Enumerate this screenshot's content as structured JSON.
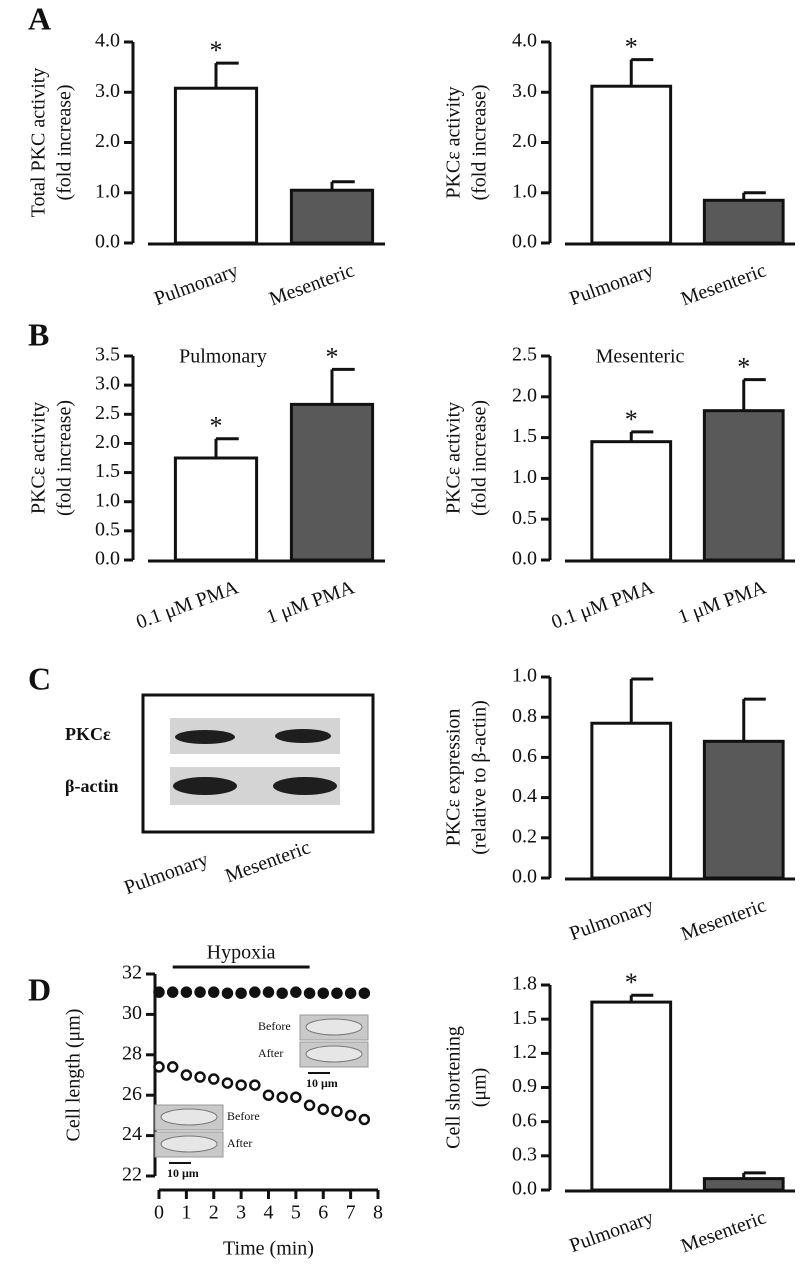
{
  "panel_labels": [
    "A",
    "B",
    "C",
    "D"
  ],
  "blot": {
    "rows": [
      "PKCε",
      "β-actin"
    ],
    "columns": [
      "Pulmonary",
      "Mesenteric"
    ]
  },
  "chart_data": [
    {
      "type": "bar",
      "ylabel": [
        "Total PKC activity",
        "(fold increase)"
      ],
      "categories": [
        "Pulmonary",
        "Mesenteric"
      ],
      "values": [
        3.08,
        1.05
      ],
      "errors": [
        0.5,
        0.17
      ],
      "annotations": [
        "*",
        null
      ],
      "colors": [
        "#ffffff",
        "#595959"
      ],
      "ylim": [
        0,
        4
      ],
      "yticks": [
        {
          "value": 0,
          "label": "0.0"
        },
        {
          "value": 1,
          "label": "1.0"
        },
        {
          "value": 2,
          "label": "2.0"
        },
        {
          "value": 3,
          "label": "3.0"
        },
        {
          "value": 4,
          "label": "4.0"
        }
      ]
    },
    {
      "type": "bar",
      "ylabel": [
        "PKCε activity",
        "(fold increase)"
      ],
      "categories": [
        "Pulmonary",
        "Mesenteric"
      ],
      "values": [
        3.12,
        0.85
      ],
      "errors": [
        0.53,
        0.15
      ],
      "annotations": [
        "*",
        null
      ],
      "colors": [
        "#ffffff",
        "#595959"
      ],
      "ylim": [
        0,
        4
      ],
      "yticks": [
        {
          "value": 0,
          "label": "0.0"
        },
        {
          "value": 1,
          "label": "1.0"
        },
        {
          "value": 2,
          "label": "2.0"
        },
        {
          "value": 3,
          "label": "3.0"
        },
        {
          "value": 4,
          "label": "4.0"
        }
      ]
    },
    {
      "type": "bar",
      "title": "Pulmonary",
      "ylabel": [
        "PKCε activity",
        "(fold increase)"
      ],
      "categories": [
        "0.1 μM PMA",
        "1 μM PMA"
      ],
      "values": [
        1.75,
        2.67
      ],
      "errors": [
        0.33,
        0.6
      ],
      "annotations": [
        "*",
        "*"
      ],
      "colors": [
        "#ffffff",
        "#595959"
      ],
      "ylim": [
        0,
        3.5
      ],
      "yticks": [
        {
          "value": 0,
          "label": "0.0"
        },
        0.5,
        {
          "value": 1,
          "label": "1.0"
        },
        1.5,
        {
          "value": 2,
          "label": "2.0"
        },
        2.5,
        {
          "value": 3,
          "label": "3.0"
        },
        3.5
      ]
    },
    {
      "type": "bar",
      "title": "Mesenteric",
      "ylabel": [
        "PKCε activity",
        "(fold increase)"
      ],
      "categories": [
        "0.1 μM PMA",
        "1 μM PMA"
      ],
      "values": [
        1.45,
        1.83
      ],
      "errors": [
        0.12,
        0.38
      ],
      "annotations": [
        "*",
        "*"
      ],
      "colors": [
        "#ffffff",
        "#595959"
      ],
      "ylim": [
        0,
        2.5
      ],
      "yticks": [
        {
          "value": 0,
          "label": "0.0"
        },
        0.5,
        {
          "value": 1,
          "label": "1.0"
        },
        1.5,
        {
          "value": 2,
          "label": "2.0"
        },
        2.5
      ]
    },
    {
      "type": "bar",
      "ylabel": [
        "PKCε expression",
        "(relative to β-actin)"
      ],
      "categories": [
        "Pulmonary",
        "Mesenteric"
      ],
      "values": [
        0.77,
        0.68
      ],
      "errors": [
        0.22,
        0.21
      ],
      "colors": [
        "#ffffff",
        "#595959"
      ],
      "ylim": [
        0,
        1
      ],
      "yticks": [
        {
          "value": 0,
          "label": "0.0"
        },
        0.2,
        0.4,
        0.6,
        0.8,
        {
          "value": 1,
          "label": "1.0"
        }
      ]
    },
    {
      "type": "scatter",
      "title": "Hypoxia",
      "hypoxia": [
        0.5,
        5.5
      ],
      "xlabel": "Time (min)",
      "ylabel": [
        "Cell length (μm)"
      ],
      "x": [
        0,
        0.5,
        1,
        1.5,
        2,
        2.5,
        3,
        3.5,
        4,
        4.5,
        5,
        5.5,
        6,
        6.5,
        7,
        7.5
      ],
      "series": [
        {
          "color": "#111111",
          "fill": "#111111",
          "values": [
            31.1,
            31.1,
            31.1,
            31.1,
            31.1,
            31.05,
            31.05,
            31.1,
            31.1,
            31.05,
            31.1,
            31.05,
            31.05,
            31.05,
            31.05,
            31.05
          ]
        },
        {
          "color": "#111111",
          "fill": "#ffffff",
          "values": [
            27.4,
            27.4,
            27.0,
            26.9,
            26.8,
            26.6,
            26.5,
            26.5,
            26.0,
            25.9,
            25.9,
            25.5,
            25.3,
            25.2,
            25.0,
            24.8
          ]
        }
      ],
      "insets": [
        {
          "labels": [
            "Before",
            "After"
          ],
          "scale": "10 μm"
        },
        {
          "labels": [
            "Before",
            "After"
          ],
          "scale": "10 μm"
        }
      ],
      "xlim": [
        0,
        8
      ],
      "xticks": [
        0,
        1,
        2,
        3,
        4,
        5,
        6,
        7,
        8
      ],
      "ylim": [
        22,
        32
      ],
      "yticks": [
        22,
        24,
        26,
        28,
        30,
        32
      ]
    },
    {
      "type": "bar",
      "ylabel": [
        "Cell shortening",
        "(μm)"
      ],
      "categories": [
        "Pulmonary",
        "Mesenteric"
      ],
      "values": [
        1.65,
        0.1
      ],
      "errors": [
        0.06,
        0.05
      ],
      "annotations": [
        "*",
        null
      ],
      "colors": [
        "#ffffff",
        "#595959"
      ],
      "ylim": [
        0,
        1.8
      ],
      "yticks": [
        {
          "value": 0,
          "label": "0.0"
        },
        0.3,
        0.6,
        0.9,
        1.2,
        1.5,
        1.8
      ]
    }
  ]
}
